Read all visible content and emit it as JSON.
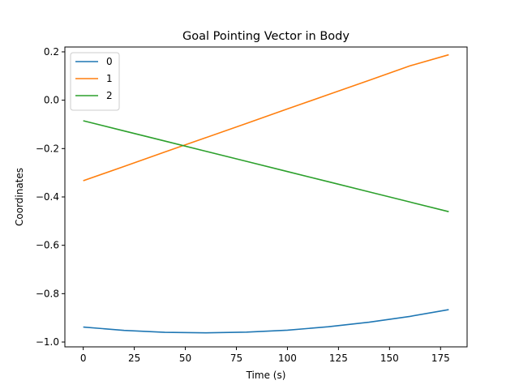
{
  "chart_data": {
    "type": "line",
    "title": "Goal Pointing Vector in Body",
    "xlabel": "Time (s)",
    "ylabel": "Coordinates",
    "xlim": [
      -9,
      188
    ],
    "ylim": [
      -1.02,
      0.22
    ],
    "xticks": [
      0,
      25,
      50,
      75,
      100,
      125,
      150,
      175
    ],
    "yticks": [
      -1.0,
      -0.8,
      -0.6,
      -0.4,
      -0.2,
      0.0,
      0.2
    ],
    "ytick_labels": [
      "−1.0",
      "−0.8",
      "−0.6",
      "−0.4",
      "−0.2",
      "0.0",
      "0.2"
    ],
    "grid": false,
    "legend_position": "top-left",
    "x": [
      0,
      20,
      40,
      60,
      80,
      100,
      120,
      140,
      160,
      179
    ],
    "series": [
      {
        "name": "0",
        "color": "#1f77b4",
        "values": [
          -0.938,
          -0.952,
          -0.96,
          -0.962,
          -0.959,
          -0.951,
          -0.937,
          -0.918,
          -0.894,
          -0.866
        ]
      },
      {
        "name": "1",
        "color": "#ff7f0e",
        "values": [
          -0.333,
          -0.274,
          -0.214,
          -0.155,
          -0.096,
          -0.036,
          0.023,
          0.082,
          0.142,
          0.188
        ]
      },
      {
        "name": "2",
        "color": "#2ca02c",
        "values": [
          -0.085,
          -0.127,
          -0.169,
          -0.211,
          -0.253,
          -0.295,
          -0.337,
          -0.379,
          -0.421,
          -0.461
        ]
      }
    ]
  }
}
